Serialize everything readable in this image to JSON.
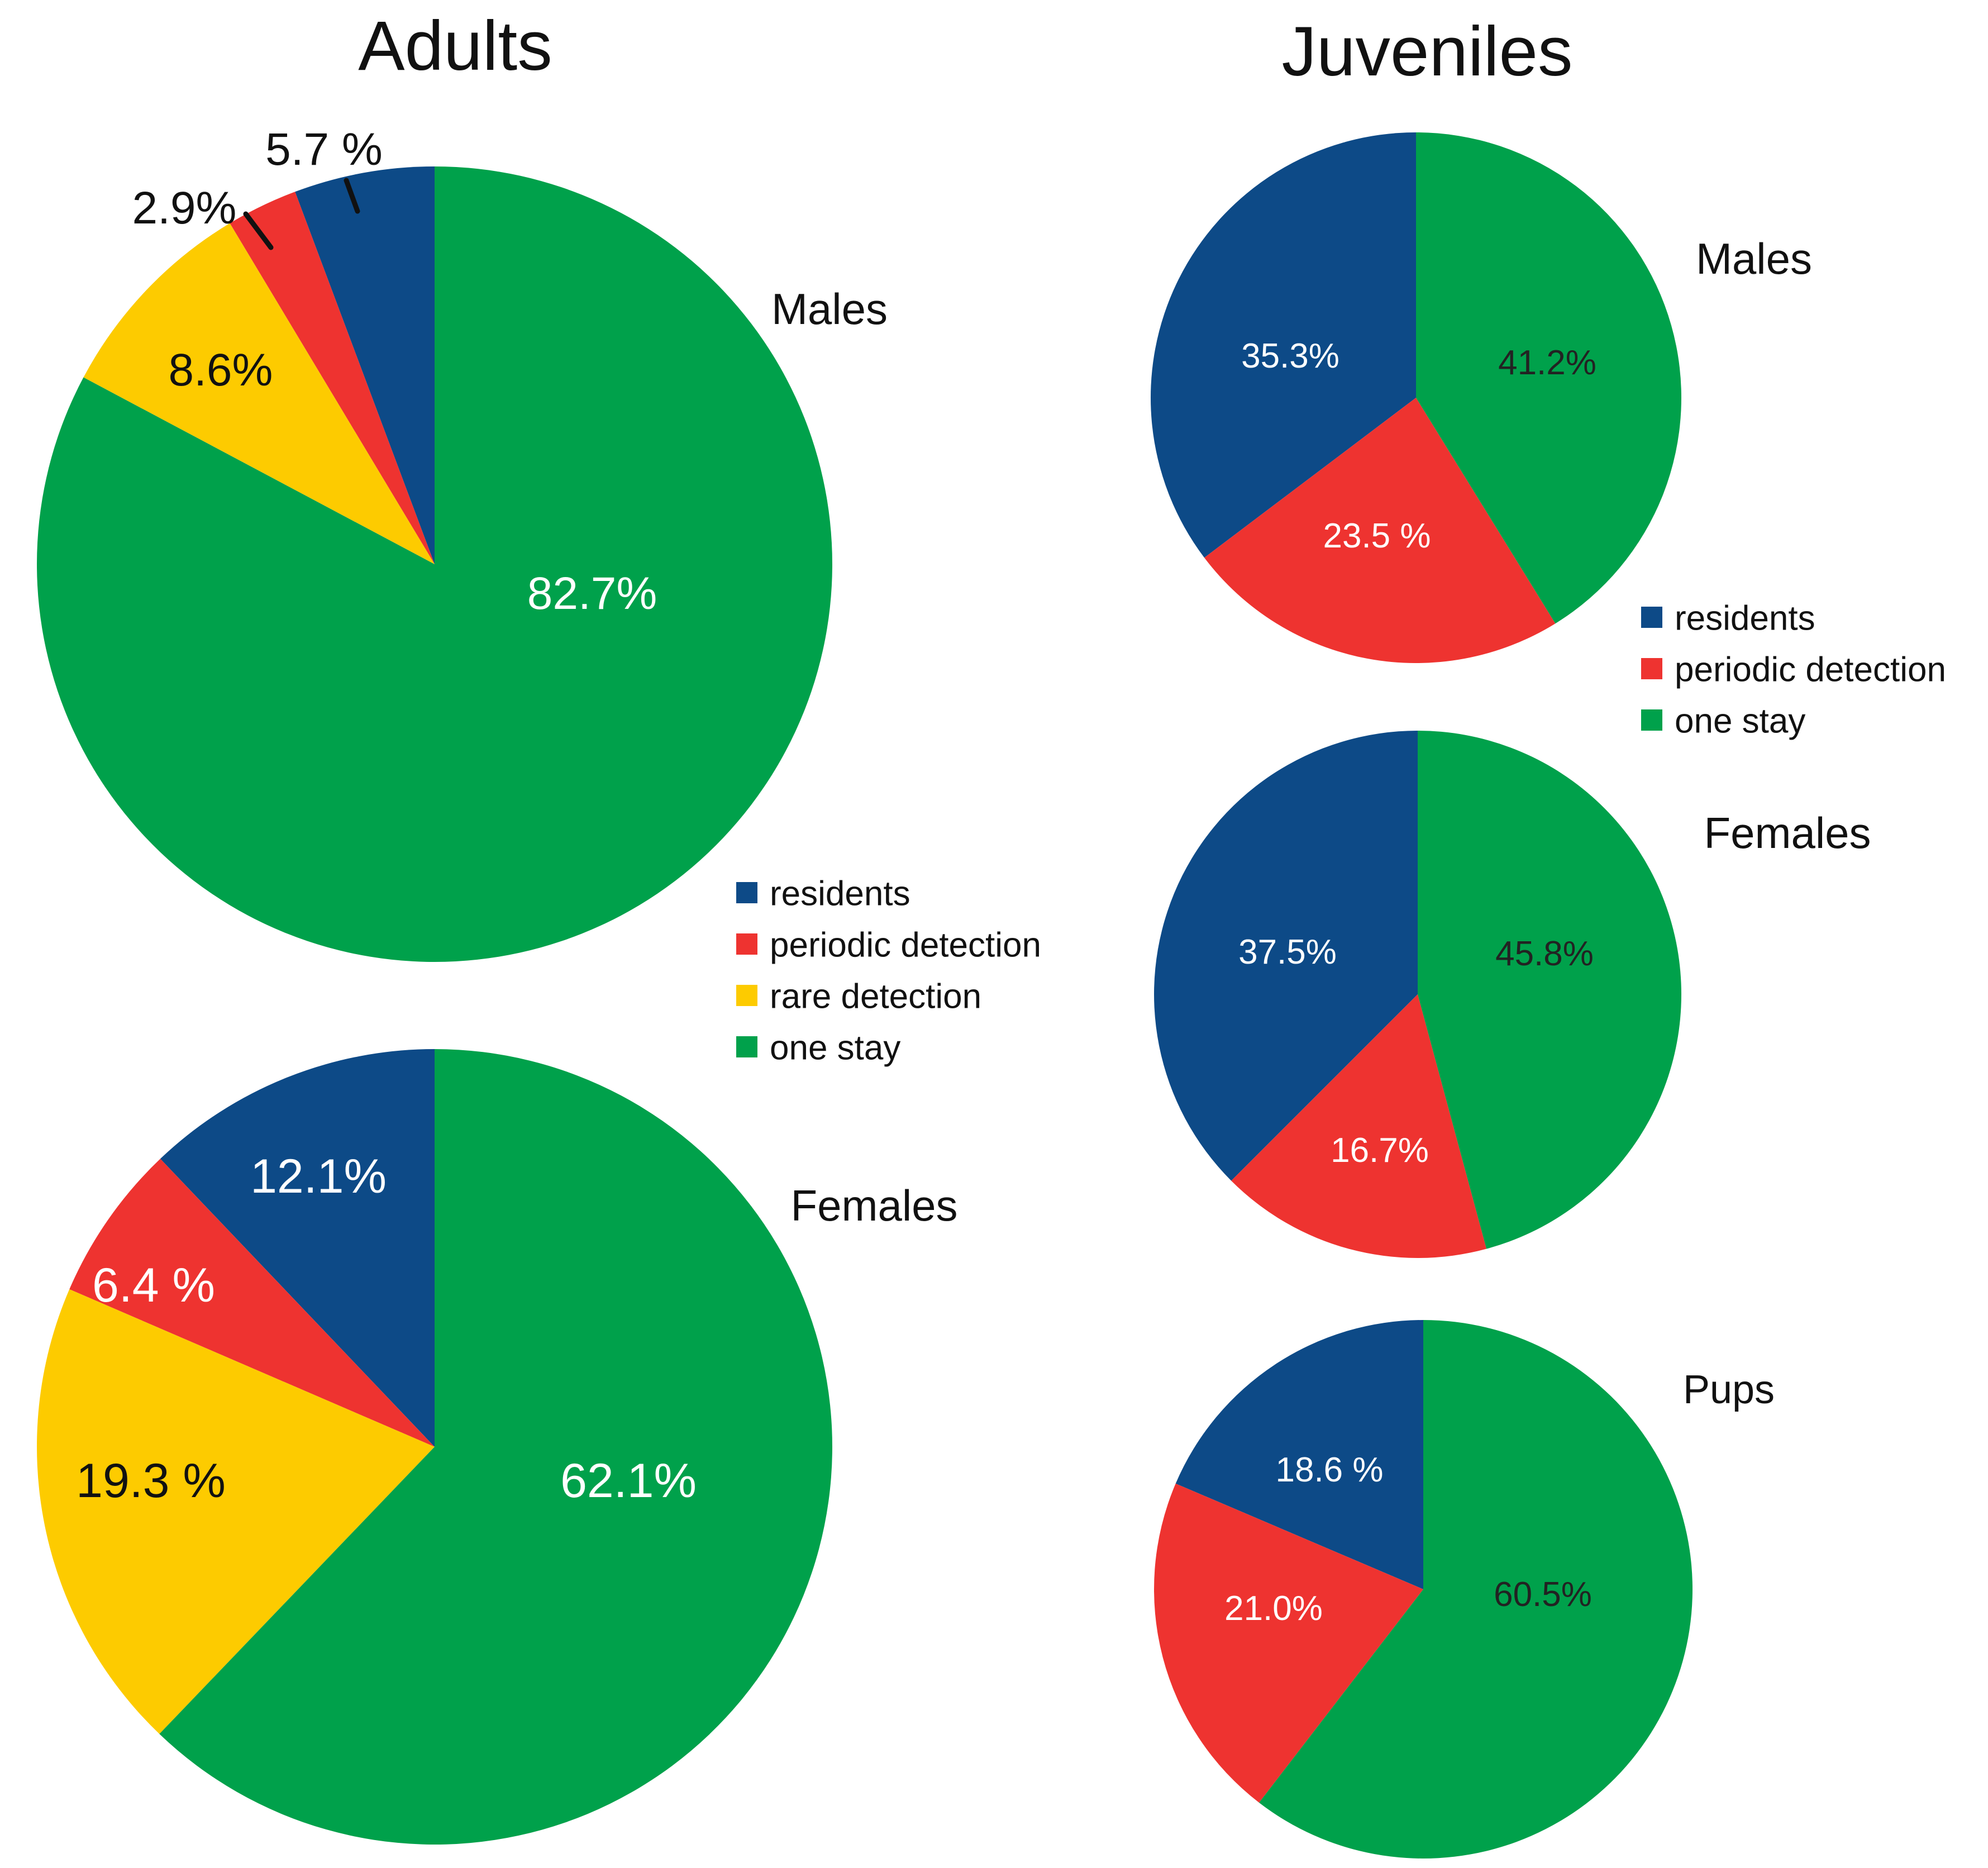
{
  "colors": {
    "residents": "#0d4a87",
    "periodic detection": "#ee3330",
    "rare detection": "#fdcb00",
    "one stay": "#00a14b"
  },
  "headings": {
    "adults": "Adults",
    "juveniles": "Juveniles"
  },
  "legends": {
    "adults": [
      "residents",
      "periodic detection",
      "rare detection",
      "one stay"
    ],
    "juveniles": [
      "residents",
      "periodic detection",
      "one stay"
    ]
  },
  "chart_data": [
    {
      "type": "pie",
      "group": "Adults",
      "title": "Males",
      "categories": [
        "residents",
        "periodic detection",
        "rare detection",
        "one stay"
      ],
      "values": [
        5.7,
        2.9,
        8.6,
        82.7
      ],
      "labels": [
        "5.7 %",
        "2.9%",
        "8.6%",
        "82.7%"
      ]
    },
    {
      "type": "pie",
      "group": "Adults",
      "title": "Females",
      "categories": [
        "residents",
        "periodic detection",
        "rare detection",
        "one stay"
      ],
      "values": [
        12.1,
        6.4,
        19.3,
        62.1
      ],
      "labels": [
        "12.1%",
        "6.4 %",
        "19.3 %",
        "62.1%"
      ]
    },
    {
      "type": "pie",
      "group": "Juveniles",
      "title": "Males",
      "categories": [
        "residents",
        "periodic detection",
        "one stay"
      ],
      "values": [
        35.3,
        23.5,
        41.2
      ],
      "labels": [
        "35.3%",
        "23.5 %",
        "41.2%"
      ]
    },
    {
      "type": "pie",
      "group": "Juveniles",
      "title": "Females",
      "categories": [
        "residents",
        "periodic detection",
        "one stay"
      ],
      "values": [
        37.5,
        16.7,
        45.8
      ],
      "labels": [
        "37.5%",
        "16.7%",
        "45.8%"
      ]
    },
    {
      "type": "pie",
      "group": "Juveniles",
      "title": "Pups",
      "categories": [
        "residents",
        "periodic detection",
        "one stay"
      ],
      "values": [
        18.6,
        21.0,
        60.5
      ],
      "labels": [
        "18.6 %",
        "21.0%",
        "60.5%"
      ]
    }
  ]
}
